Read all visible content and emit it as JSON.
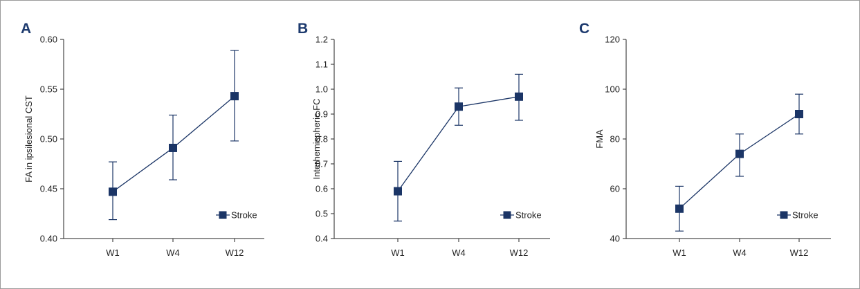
{
  "colors": {
    "series": "#1b3566",
    "axis": "#222222",
    "border": "#9a9a9a",
    "panel_letter": "#1d3a6e"
  },
  "chart_data": [
    {
      "panel": "A",
      "type": "line",
      "categories": [
        "W1",
        "W4",
        "W12"
      ],
      "ylabel": "FA in ipsilesional CST",
      "ylim": [
        0.4,
        0.6
      ],
      "yticks": [
        "0.40",
        "0.45",
        "0.50",
        "0.55",
        "0.60"
      ],
      "series": [
        {
          "name": "Stroke",
          "values": [
            0.447,
            0.491,
            0.543
          ],
          "err_low": [
            0.419,
            0.459,
            0.498
          ],
          "err_high": [
            0.477,
            0.524,
            0.589
          ]
        }
      ],
      "legend": "bottom-right",
      "grid": false
    },
    {
      "panel": "B",
      "type": "line",
      "categories": [
        "W1",
        "W4",
        "W12"
      ],
      "ylabel": "Interhemispheric FC",
      "ylim": [
        0.4,
        1.2
      ],
      "yticks": [
        "0.4",
        "0.5",
        "0.6",
        "0.7",
        "0.8",
        "0.9",
        "1.0",
        "1.1",
        "1.2"
      ],
      "series": [
        {
          "name": "Stroke",
          "values": [
            0.59,
            0.93,
            0.97
          ],
          "err_low": [
            0.47,
            0.855,
            0.875
          ],
          "err_high": [
            0.71,
            1.005,
            1.06
          ]
        }
      ],
      "legend": "bottom-right",
      "grid": false
    },
    {
      "panel": "C",
      "type": "line",
      "categories": [
        "W1",
        "W4",
        "W12"
      ],
      "ylabel": "FMA",
      "ylim": [
        40,
        120
      ],
      "yticks": [
        "40",
        "60",
        "80",
        "100",
        "120"
      ],
      "series": [
        {
          "name": "Stroke",
          "values": [
            52,
            74,
            90
          ],
          "err_low": [
            43,
            65,
            82
          ],
          "err_high": [
            61,
            82,
            98
          ]
        }
      ],
      "legend": "bottom-right",
      "grid": false
    }
  ]
}
